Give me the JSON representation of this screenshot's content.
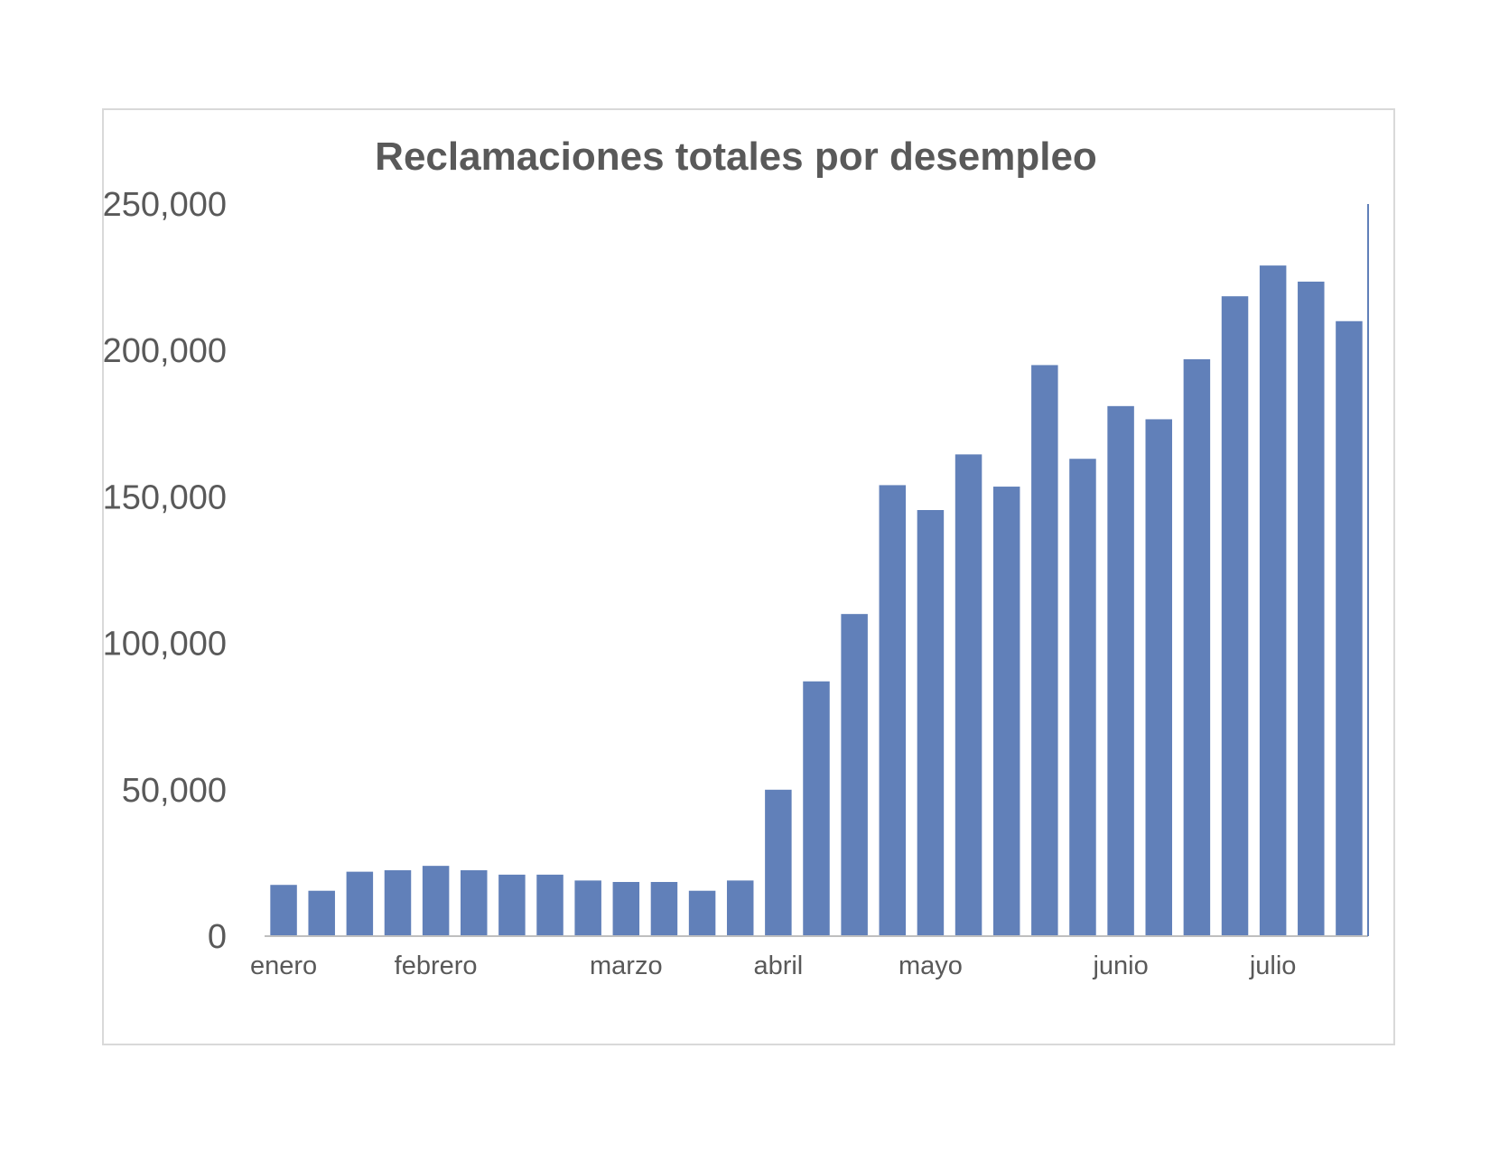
{
  "chart_data": {
    "type": "bar",
    "title": "Reclamaciones totales por desempleo",
    "xlabel": "",
    "ylabel": "",
    "ylim": [
      0,
      250000
    ],
    "y_ticks": [
      "0",
      "50,000",
      "100,000",
      "150,000",
      "200,000",
      "250,000"
    ],
    "y_tick_values": [
      0,
      50000,
      100000,
      150000,
      200000,
      250000
    ],
    "x_tick_labels": [
      {
        "label": "enero",
        "bar_index": 0
      },
      {
        "label": "febrero",
        "bar_index": 4
      },
      {
        "label": "marzo",
        "bar_index": 9
      },
      {
        "label": "abril",
        "bar_index": 13
      },
      {
        "label": "mayo",
        "bar_index": 17
      },
      {
        "label": "junio",
        "bar_index": 22
      },
      {
        "label": "julio",
        "bar_index": 26
      }
    ],
    "values": [
      17500,
      15500,
      22000,
      22500,
      24000,
      22500,
      21000,
      21000,
      19000,
      18500,
      18500,
      15500,
      19000,
      50000,
      87000,
      110000,
      154000,
      145500,
      164500,
      153500,
      195000,
      163000,
      181000,
      176500,
      197000,
      218500,
      229000,
      223500,
      210000
    ],
    "grid": false,
    "legend": "none",
    "bar_color": "#6180b9",
    "axis_color": "#bfbfbf",
    "text_color": "#595959"
  }
}
